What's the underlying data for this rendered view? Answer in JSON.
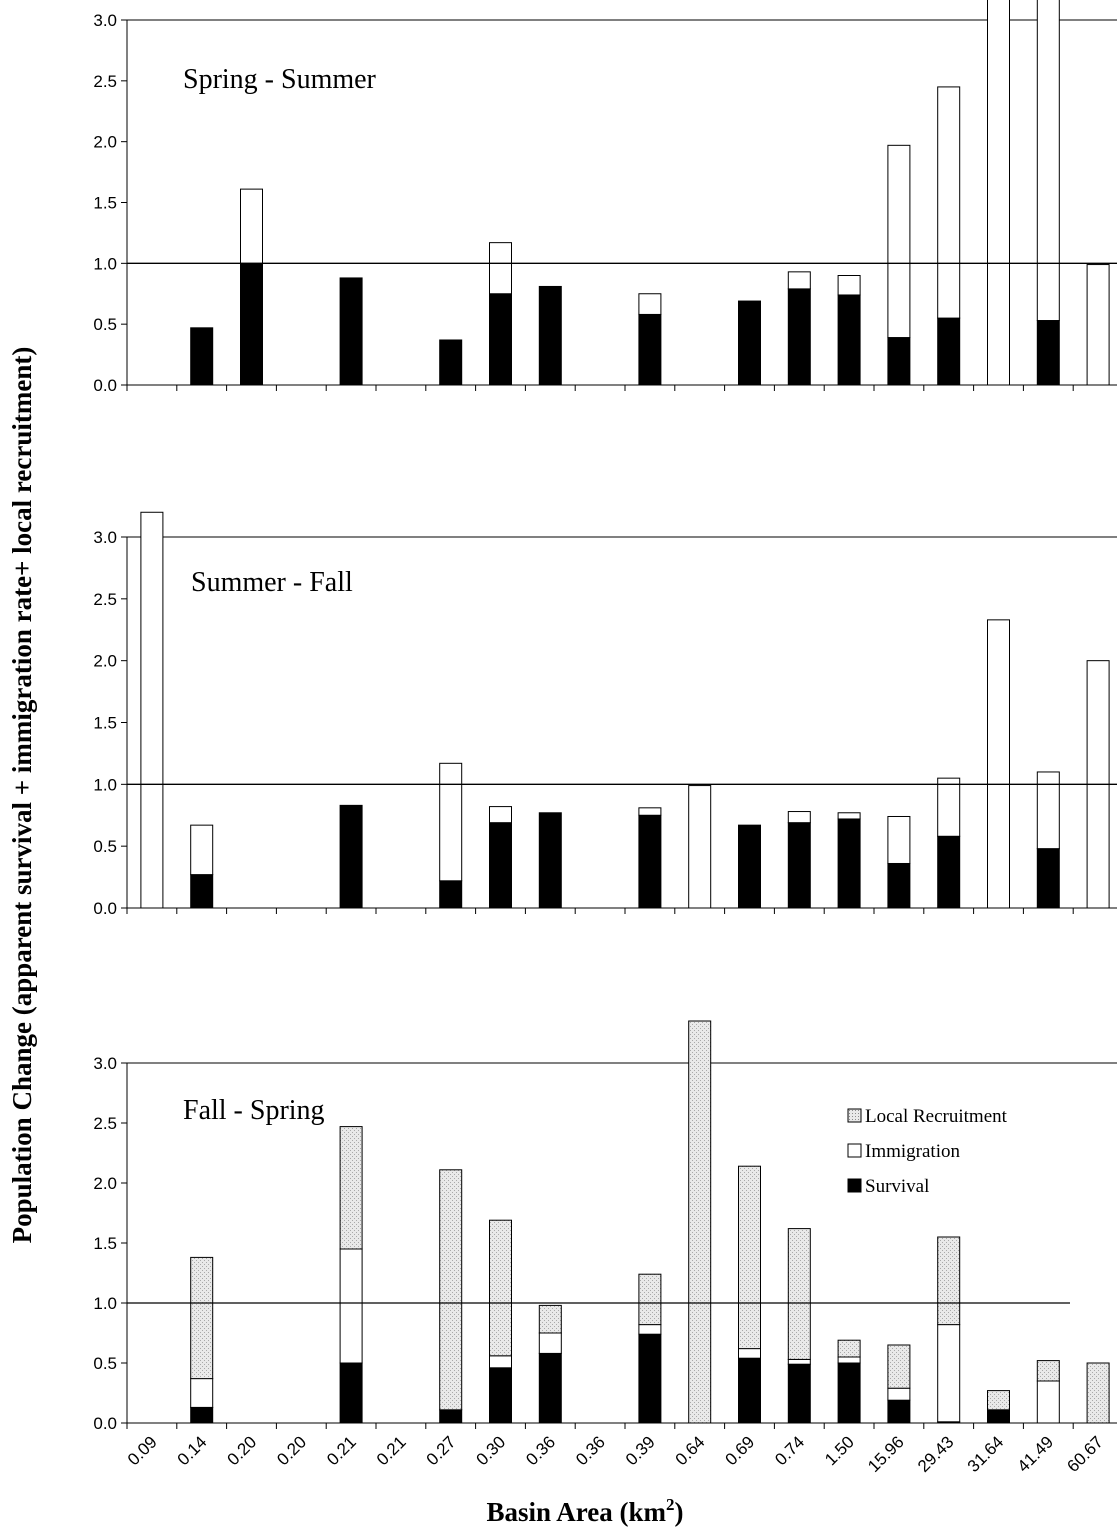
{
  "colors": {
    "survival": "#000000",
    "immigration": "#ffffff",
    "local_recruitment": "#e8e8e8",
    "stroke": "#000000"
  },
  "chart_data": {
    "type": "bar",
    "stacked": true,
    "ylabel": "Population Change (apparent survival + immigration rate+ local recruitment)",
    "xlabel_main": "Basin Area (km",
    "xlabel_sup": "2",
    "xlabel_tail": ")",
    "categories": [
      "0.09",
      "0.14",
      "0.20",
      "0.20",
      "0.21",
      "0.21",
      "0.27",
      "0.30",
      "0.36",
      "0.36",
      "0.39",
      "0.64",
      "0.69",
      "0.74",
      "1.50",
      "15.96",
      "29.43",
      "31.64",
      "41.49",
      "60.67"
    ],
    "ylim": [
      0,
      3.0
    ],
    "yticks": [
      "0.0",
      "0.5",
      "1.0",
      "1.5",
      "2.0",
      "2.5",
      "3.0"
    ],
    "reference_line": 1.0,
    "legend": {
      "placement": "top-right of bottom panel",
      "entries": [
        {
          "key": "local_recruitment",
          "label": "Local Recruitment"
        },
        {
          "key": "immigration",
          "label": "Immigration"
        },
        {
          "key": "survival",
          "label": "Survival"
        }
      ]
    },
    "panels": [
      {
        "title": "Spring - Summer",
        "bars": [
          {
            "category_index": 1,
            "survival": 0.47,
            "immigration": 0,
            "local_recruitment": 0
          },
          {
            "category_index": 2,
            "survival": 1.0,
            "immigration": 0.61,
            "local_recruitment": 0
          },
          {
            "category_index": 4,
            "survival": 0.88,
            "immigration": 0,
            "local_recruitment": 0
          },
          {
            "category_index": 6,
            "survival": 0.37,
            "immigration": 0,
            "local_recruitment": 0
          },
          {
            "category_index": 7,
            "survival": 0.75,
            "immigration": 0.42,
            "local_recruitment": 0
          },
          {
            "category_index": 8,
            "survival": 0.81,
            "immigration": 0,
            "local_recruitment": 0
          },
          {
            "category_index": 10,
            "survival": 0.58,
            "immigration": 0.17,
            "local_recruitment": 0
          },
          {
            "category_index": 12,
            "survival": 0.69,
            "immigration": 0,
            "local_recruitment": 0
          },
          {
            "category_index": 13,
            "survival": 0.79,
            "immigration": 0.14,
            "local_recruitment": 0
          },
          {
            "category_index": 14,
            "survival": 0.74,
            "immigration": 0.16,
            "local_recruitment": 0
          },
          {
            "category_index": 15,
            "survival": 0.39,
            "immigration": 1.58,
            "local_recruitment": 0
          },
          {
            "category_index": 16,
            "survival": 0.55,
            "immigration": 1.9,
            "local_recruitment": 0
          },
          {
            "category_index": 17,
            "survival": 0,
            "immigration": 3.2,
            "local_recruitment": 0
          },
          {
            "category_index": 18,
            "survival": 0.53,
            "immigration": 2.67,
            "local_recruitment": 0
          },
          {
            "category_index": 19,
            "survival": 0,
            "immigration": 0.99,
            "local_recruitment": 0
          }
        ]
      },
      {
        "title": "Summer - Fall",
        "bars": [
          {
            "category_index": 0,
            "survival": 0,
            "immigration": 3.2,
            "local_recruitment": 0
          },
          {
            "category_index": 1,
            "survival": 0.27,
            "immigration": 0.4,
            "local_recruitment": 0
          },
          {
            "category_index": 4,
            "survival": 0.83,
            "immigration": 0,
            "local_recruitment": 0
          },
          {
            "category_index": 6,
            "survival": 0.22,
            "immigration": 0.95,
            "local_recruitment": 0
          },
          {
            "category_index": 7,
            "survival": 0.69,
            "immigration": 0.13,
            "local_recruitment": 0
          },
          {
            "category_index": 8,
            "survival": 0.77,
            "immigration": 0,
            "local_recruitment": 0
          },
          {
            "category_index": 10,
            "survival": 0.75,
            "immigration": 0.06,
            "local_recruitment": 0
          },
          {
            "category_index": 11,
            "survival": 0,
            "immigration": 0.99,
            "local_recruitment": 0
          },
          {
            "category_index": 12,
            "survival": 0.67,
            "immigration": 0,
            "local_recruitment": 0
          },
          {
            "category_index": 13,
            "survival": 0.69,
            "immigration": 0.09,
            "local_recruitment": 0
          },
          {
            "category_index": 14,
            "survival": 0.72,
            "immigration": 0.05,
            "local_recruitment": 0
          },
          {
            "category_index": 15,
            "survival": 0.36,
            "immigration": 0.38,
            "local_recruitment": 0
          },
          {
            "category_index": 16,
            "survival": 0.58,
            "immigration": 0.47,
            "local_recruitment": 0
          },
          {
            "category_index": 17,
            "survival": 0,
            "immigration": 2.33,
            "local_recruitment": 0
          },
          {
            "category_index": 18,
            "survival": 0.48,
            "immigration": 0.62,
            "local_recruitment": 0
          },
          {
            "category_index": 19,
            "survival": 0,
            "immigration": 2.0,
            "local_recruitment": 0
          }
        ]
      },
      {
        "title": "Fall - Spring",
        "bars": [
          {
            "category_index": 1,
            "survival": 0.13,
            "immigration": 0.24,
            "local_recruitment": 1.01
          },
          {
            "category_index": 4,
            "survival": 0.5,
            "immigration": 0.95,
            "local_recruitment": 1.02
          },
          {
            "category_index": 6,
            "survival": 0.11,
            "immigration": 0,
            "local_recruitment": 2.0
          },
          {
            "category_index": 7,
            "survival": 0.46,
            "immigration": 0.1,
            "local_recruitment": 1.13
          },
          {
            "category_index": 8,
            "survival": 0.58,
            "immigration": 0.17,
            "local_recruitment": 0.23
          },
          {
            "category_index": 10,
            "survival": 0.74,
            "immigration": 0.08,
            "local_recruitment": 0.42
          },
          {
            "category_index": 11,
            "survival": 0,
            "immigration": 0,
            "local_recruitment": 3.35
          },
          {
            "category_index": 12,
            "survival": 0.54,
            "immigration": 0.08,
            "local_recruitment": 1.52
          },
          {
            "category_index": 13,
            "survival": 0.49,
            "immigration": 0.04,
            "local_recruitment": 1.09
          },
          {
            "category_index": 14,
            "survival": 0.5,
            "immigration": 0.05,
            "local_recruitment": 0.14
          },
          {
            "category_index": 15,
            "survival": 0.19,
            "immigration": 0.1,
            "local_recruitment": 0.36
          },
          {
            "category_index": 16,
            "survival": 0.01,
            "immigration": 0.81,
            "local_recruitment": 0.73
          },
          {
            "category_index": 17,
            "survival": 0.11,
            "immigration": 0,
            "local_recruitment": 0.16
          },
          {
            "category_index": 18,
            "survival": 0,
            "immigration": 0.35,
            "local_recruitment": 0.17
          },
          {
            "category_index": 19,
            "survival": 0,
            "immigration": 0,
            "local_recruitment": 0.5
          }
        ]
      }
    ]
  }
}
